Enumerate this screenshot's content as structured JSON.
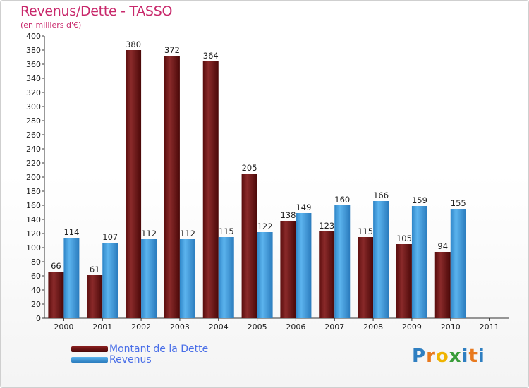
{
  "header": {
    "title": "Revenus/Dette - TASSO",
    "subtitle": "(en milliers d'€)"
  },
  "legend": {
    "debt_label": "Montant de la Dette",
    "revenue_label": "Revenus"
  },
  "logo": {
    "letters": [
      "P",
      "r",
      "o",
      "x",
      "i",
      "t",
      "i"
    ],
    "colors": [
      "#2f7fc1",
      "#e8791e",
      "#f0b400",
      "#3a9d3a",
      "#2f7fc1",
      "#e8791e",
      "#2f7fc1"
    ]
  },
  "colors": {
    "debt": "#7a1a1a",
    "revenue": "#3a9ad9",
    "axis_text": "#222222"
  },
  "chart_data": {
    "type": "bar",
    "title": "Revenus/Dette - TASSO",
    "ylabel": "(en milliers d'€)",
    "xlabel": "",
    "ylim": [
      0,
      400
    ],
    "ytick_step": 20,
    "categories": [
      "2000",
      "2001",
      "2002",
      "2003",
      "2004",
      "2005",
      "2006",
      "2007",
      "2008",
      "2009",
      "2010",
      "2011"
    ],
    "series": [
      {
        "name": "Montant de la Dette",
        "values": [
          66,
          61,
          380,
          372,
          364,
          205,
          138,
          123,
          115,
          105,
          94,
          null
        ]
      },
      {
        "name": "Revenus",
        "values": [
          114,
          107,
          112,
          112,
          115,
          122,
          149,
          160,
          166,
          159,
          155,
          null
        ]
      }
    ],
    "legend_position": "bottom-left",
    "grid": false
  }
}
